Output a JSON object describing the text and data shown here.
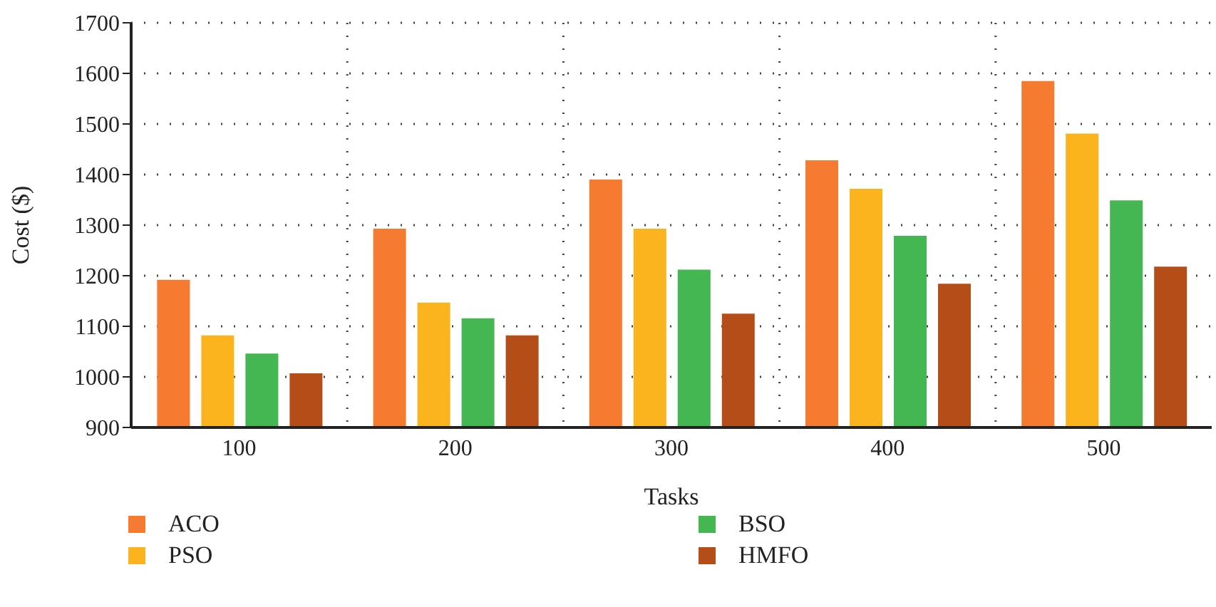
{
  "chart_data": {
    "type": "bar",
    "xlabel": "Tasks",
    "ylabel": "Cost ($)",
    "categories": [
      "100",
      "200",
      "300",
      "400",
      "500"
    ],
    "series": [
      {
        "name": "ACO",
        "color": "#f47b30",
        "values": [
          1192,
          1293,
          1390,
          1428,
          1585
        ]
      },
      {
        "name": "PSO",
        "color": "#fbb31e",
        "values": [
          1082,
          1147,
          1293,
          1372,
          1481
        ]
      },
      {
        "name": "BSO",
        "color": "#44b752",
        "values": [
          1046,
          1116,
          1212,
          1279,
          1349
        ]
      },
      {
        "name": "HMFO",
        "color": "#b54d19",
        "values": [
          1007,
          1082,
          1125,
          1184,
          1218
        ]
      }
    ],
    "ylim": [
      900,
      1700
    ],
    "yticks": [
      900,
      1000,
      1100,
      1200,
      1300,
      1400,
      1500,
      1600,
      1700
    ],
    "grid": true,
    "legend": "bottom"
  }
}
